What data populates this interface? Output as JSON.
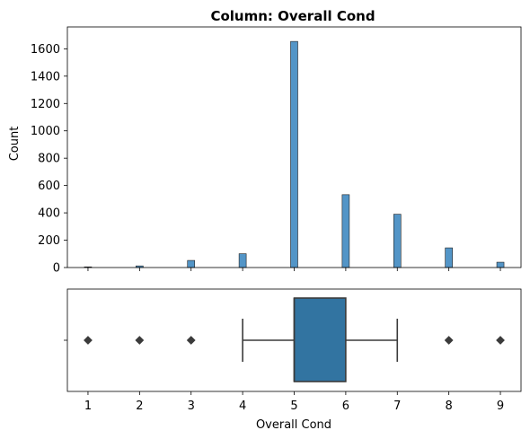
{
  "chart_data": [
    {
      "type": "bar",
      "kind": "histogram",
      "title": "Column: Overall Cond",
      "xlabel": "",
      "ylabel": "Count",
      "xlim": [
        0.6,
        9.4
      ],
      "ylim": [
        0,
        1760
      ],
      "yticks": [
        0,
        200,
        400,
        600,
        800,
        1000,
        1200,
        1400,
        1600
      ],
      "categories": [
        1,
        2,
        3,
        4,
        5,
        6,
        7,
        8,
        9
      ],
      "values": [
        5,
        12,
        52,
        101,
        1654,
        533,
        390,
        144,
        39
      ],
      "color": "#4a8fc4"
    },
    {
      "type": "box",
      "xlabel": "Overall Cond",
      "xlim": [
        0.6,
        9.4
      ],
      "xticks": [
        1,
        2,
        3,
        4,
        5,
        6,
        7,
        8,
        9
      ],
      "q1": 5,
      "median": 5,
      "q3": 6,
      "whisker_low": 4,
      "whisker_high": 7,
      "outliers": [
        1,
        2,
        3,
        8,
        9
      ],
      "color": "#3274a1"
    }
  ]
}
